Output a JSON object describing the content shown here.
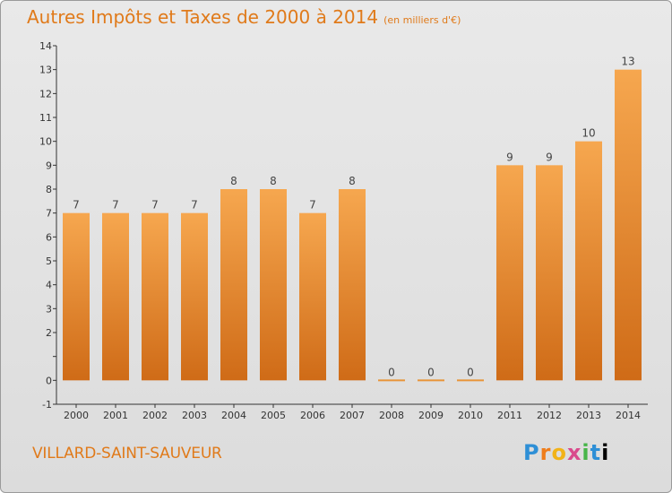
{
  "header": {
    "title": "Autres Impôts et Taxes de 2000 à 2014",
    "unit": "(en milliers d'€)"
  },
  "footer": {
    "commune": "VILLARD-SAINT-SAUVEUR",
    "logo_letters": [
      "P",
      "r",
      "o",
      "x",
      "i",
      "t",
      "i"
    ]
  },
  "colors": {
    "bar_light": "#f6a74f",
    "bar_dark": "#cf6b17",
    "accent": "#e07a1a"
  },
  "chart_data": {
    "type": "bar",
    "title": "Autres Impôts et Taxes de 2000 à 2014",
    "subtitle": "(en milliers d'€)",
    "xlabel": "",
    "ylabel": "",
    "categories": [
      "2000",
      "2001",
      "2002",
      "2003",
      "2004",
      "2005",
      "2006",
      "2007",
      "2008",
      "2009",
      "2010",
      "2011",
      "2012",
      "2013",
      "2014"
    ],
    "values": [
      7,
      7,
      7,
      7,
      8,
      8,
      7,
      8,
      0,
      0,
      0,
      9,
      9,
      10,
      13
    ],
    "ylim": [
      -1,
      14
    ],
    "yticks": [
      -1,
      0,
      1,
      2,
      3,
      4,
      5,
      6,
      7,
      8,
      9,
      10,
      11,
      12,
      13,
      14
    ],
    "ytick_labels": [
      "-1",
      "0",
      "",
      "2",
      "3",
      "4",
      "5",
      "6",
      "7",
      "8",
      "9",
      "10",
      "11",
      "12",
      "13",
      "14"
    ],
    "grid": false,
    "data_labels": true
  }
}
